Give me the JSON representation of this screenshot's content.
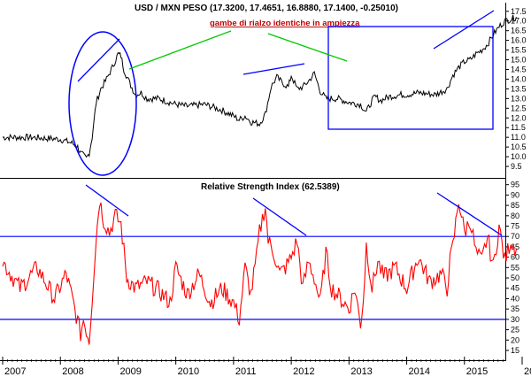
{
  "chart_data": [
    {
      "type": "line",
      "title": "USD / MXN PESO (17.3200, 17.4651, 16.8880, 17.1400, -0.25010)",
      "annotation": "gambe di rialzo identiche in ampiezza",
      "y_ticks": [
        "9.5",
        "10.0",
        "10.5",
        "11.0",
        "11.5",
        "12.0",
        "12.5",
        "13.0",
        "13.5",
        "14.0",
        "14.5",
        "15.0",
        "15.5",
        "16.0",
        "16.5",
        "17.0",
        "17.5"
      ],
      "ylim": [
        9.0,
        17.9
      ],
      "xlim": [
        2007.0,
        2016.0
      ],
      "series": [
        {
          "color": "#000000",
          "x": [
            2007.0,
            2007.5,
            2008.0,
            2008.2,
            2008.3,
            2008.35,
            2008.45,
            2008.5,
            2008.55,
            2008.62,
            2008.7,
            2008.8,
            2008.9,
            2009.0,
            2009.05,
            2009.1,
            2009.2,
            2009.3,
            2009.4,
            2009.5,
            2009.7,
            2009.9,
            2010.0,
            2010.2,
            2010.5,
            2010.8,
            2011.0,
            2011.1,
            2011.2,
            2011.3,
            2011.45,
            2011.55,
            2011.65,
            2011.75,
            2011.85,
            2011.95,
            2012.0,
            2012.1,
            2012.2,
            2012.3,
            2012.4,
            2012.5,
            2012.6,
            2012.8,
            2013.0,
            2013.2,
            2013.3,
            2013.4,
            2013.45,
            2013.55,
            2013.7,
            2013.9,
            2014.0,
            2014.2,
            2014.5,
            2014.7,
            2014.8,
            2014.9,
            2015.0,
            2015.1,
            2015.2,
            2015.3,
            2015.4,
            2015.5,
            2015.6,
            2015.7,
            2015.8,
            2015.9
          ],
          "values": [
            11.0,
            11.0,
            10.9,
            10.7,
            10.5,
            10.2,
            9.9,
            10.2,
            11.0,
            12.8,
            13.5,
            14.0,
            14.6,
            15.3,
            15.2,
            14.5,
            13.8,
            13.2,
            13.3,
            13.0,
            13.0,
            12.8,
            12.7,
            12.6,
            12.7,
            12.4,
            12.1,
            11.9,
            12.1,
            11.8,
            11.7,
            12.2,
            13.6,
            14.1,
            13.8,
            13.6,
            14.2,
            13.5,
            13.6,
            13.9,
            14.3,
            13.4,
            13.0,
            13.0,
            12.8,
            12.7,
            12.3,
            12.9,
            13.1,
            12.9,
            13.1,
            13.2,
            13.2,
            13.3,
            13.2,
            13.5,
            14.2,
            14.6,
            14.9,
            15.0,
            15.3,
            15.5,
            15.8,
            16.3,
            16.7,
            17.0,
            17.1,
            17.2
          ]
        }
      ],
      "shapes": {
        "ellipse_color": "#0000ff",
        "box_color": "#0000ff",
        "green_lines_color": "#00c800",
        "blue_lines_color": "#0000ff"
      }
    },
    {
      "type": "line",
      "title": "Relative Strength Index (62.5389)",
      "y_ticks": [
        "15",
        "20",
        "25",
        "30",
        "35",
        "40",
        "45",
        "50",
        "55",
        "60",
        "65",
        "70",
        "75",
        "80",
        "85",
        "90",
        "95"
      ],
      "ylim": [
        12,
        97
      ],
      "reference_lines": [
        70,
        30
      ],
      "series": [
        {
          "color": "#ff0000",
          "x": [
            2007.0,
            2007.3,
            2007.6,
            2007.9,
            2008.1,
            2008.25,
            2008.35,
            2008.4,
            2008.5,
            2008.55,
            2008.62,
            2008.68,
            2008.75,
            2008.85,
            2008.95,
            2009.05,
            2009.15,
            2009.3,
            2009.5,
            2009.7,
            2009.9,
            2010.0,
            2010.2,
            2010.4,
            2010.6,
            2010.8,
            2011.0,
            2011.1,
            2011.2,
            2011.3,
            2011.4,
            2011.45,
            2011.55,
            2011.6,
            2011.7,
            2011.8,
            2011.9,
            2012.0,
            2012.1,
            2012.2,
            2012.3,
            2012.4,
            2012.5,
            2012.6,
            2012.7,
            2012.8,
            2013.0,
            2013.1,
            2013.2,
            2013.25,
            2013.3,
            2013.4,
            2013.5,
            2013.6,
            2013.8,
            2014.0,
            2014.2,
            2014.4,
            2014.6,
            2014.7,
            2014.75,
            2014.8,
            2014.9,
            2015.0,
            2015.1,
            2015.2,
            2015.3,
            2015.4,
            2015.5,
            2015.6,
            2015.7,
            2015.8,
            2015.9
          ],
          "values": [
            58,
            45,
            55,
            40,
            52,
            35,
            23,
            30,
            20,
            40,
            70,
            88,
            78,
            72,
            80,
            76,
            50,
            45,
            48,
            44,
            38,
            55,
            42,
            52,
            38,
            45,
            38,
            30,
            55,
            42,
            60,
            72,
            85,
            68,
            62,
            52,
            55,
            60,
            68,
            45,
            58,
            50,
            38,
            62,
            45,
            42,
            35,
            45,
            28,
            40,
            66,
            45,
            58,
            50,
            55,
            45,
            60,
            48,
            52,
            45,
            58,
            65,
            88,
            72,
            78,
            62,
            58,
            70,
            55,
            75,
            58,
            68,
            64
          ]
        }
      ],
      "x_ticks": [
        "2007",
        "2008",
        "2009",
        "2010",
        "2011",
        "2012",
        "2013",
        "2014",
        "2015",
        "20"
      ]
    }
  ]
}
